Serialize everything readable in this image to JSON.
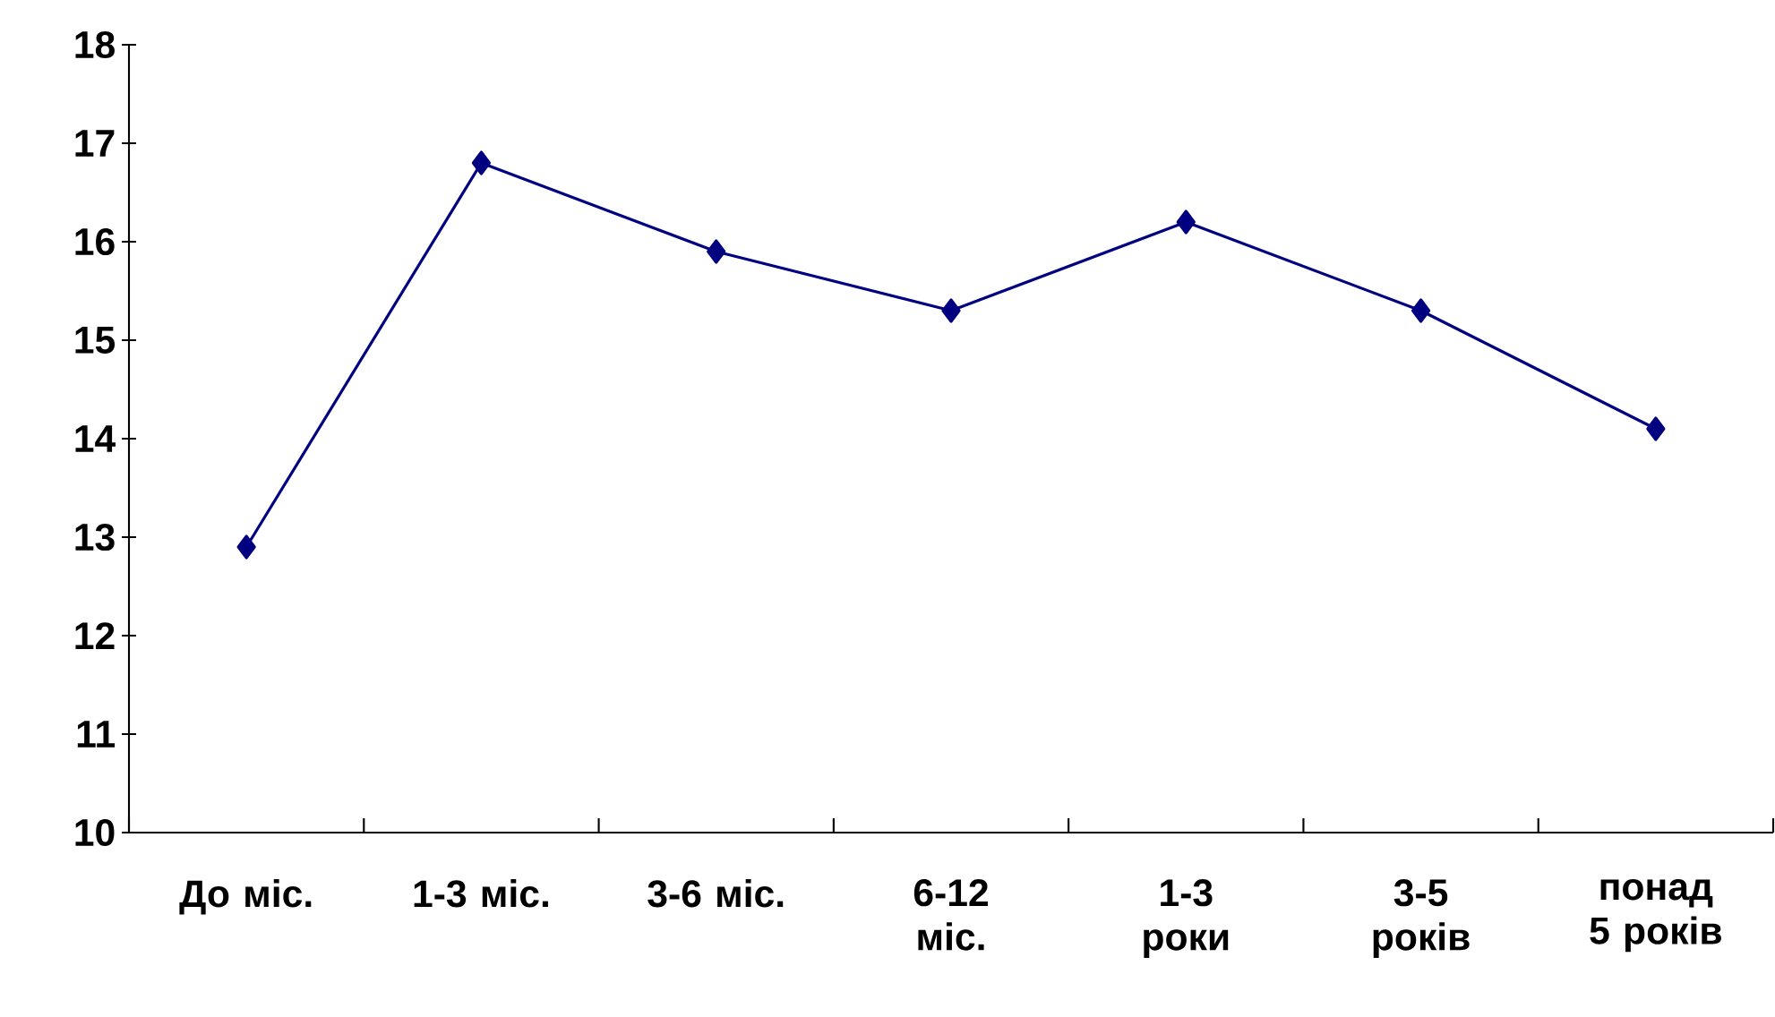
{
  "chart_data": {
    "type": "line",
    "categories": [
      "До міс.",
      "1-3 міс.",
      "3-6 міс.",
      "6-12 міс.",
      "1-3 роки",
      "3-5 років",
      "понад 5 років"
    ],
    "series": [
      {
        "color": "#000080",
        "values": [
          12.9,
          16.8,
          15.9,
          15.3,
          16.2,
          15.3,
          14.1
        ]
      }
    ],
    "ylim": [
      10,
      18
    ],
    "yticks": [
      10,
      11,
      12,
      13,
      14,
      15,
      16,
      17,
      18
    ],
    "marker": "diamond",
    "line_style": "solid",
    "grid": false
  }
}
